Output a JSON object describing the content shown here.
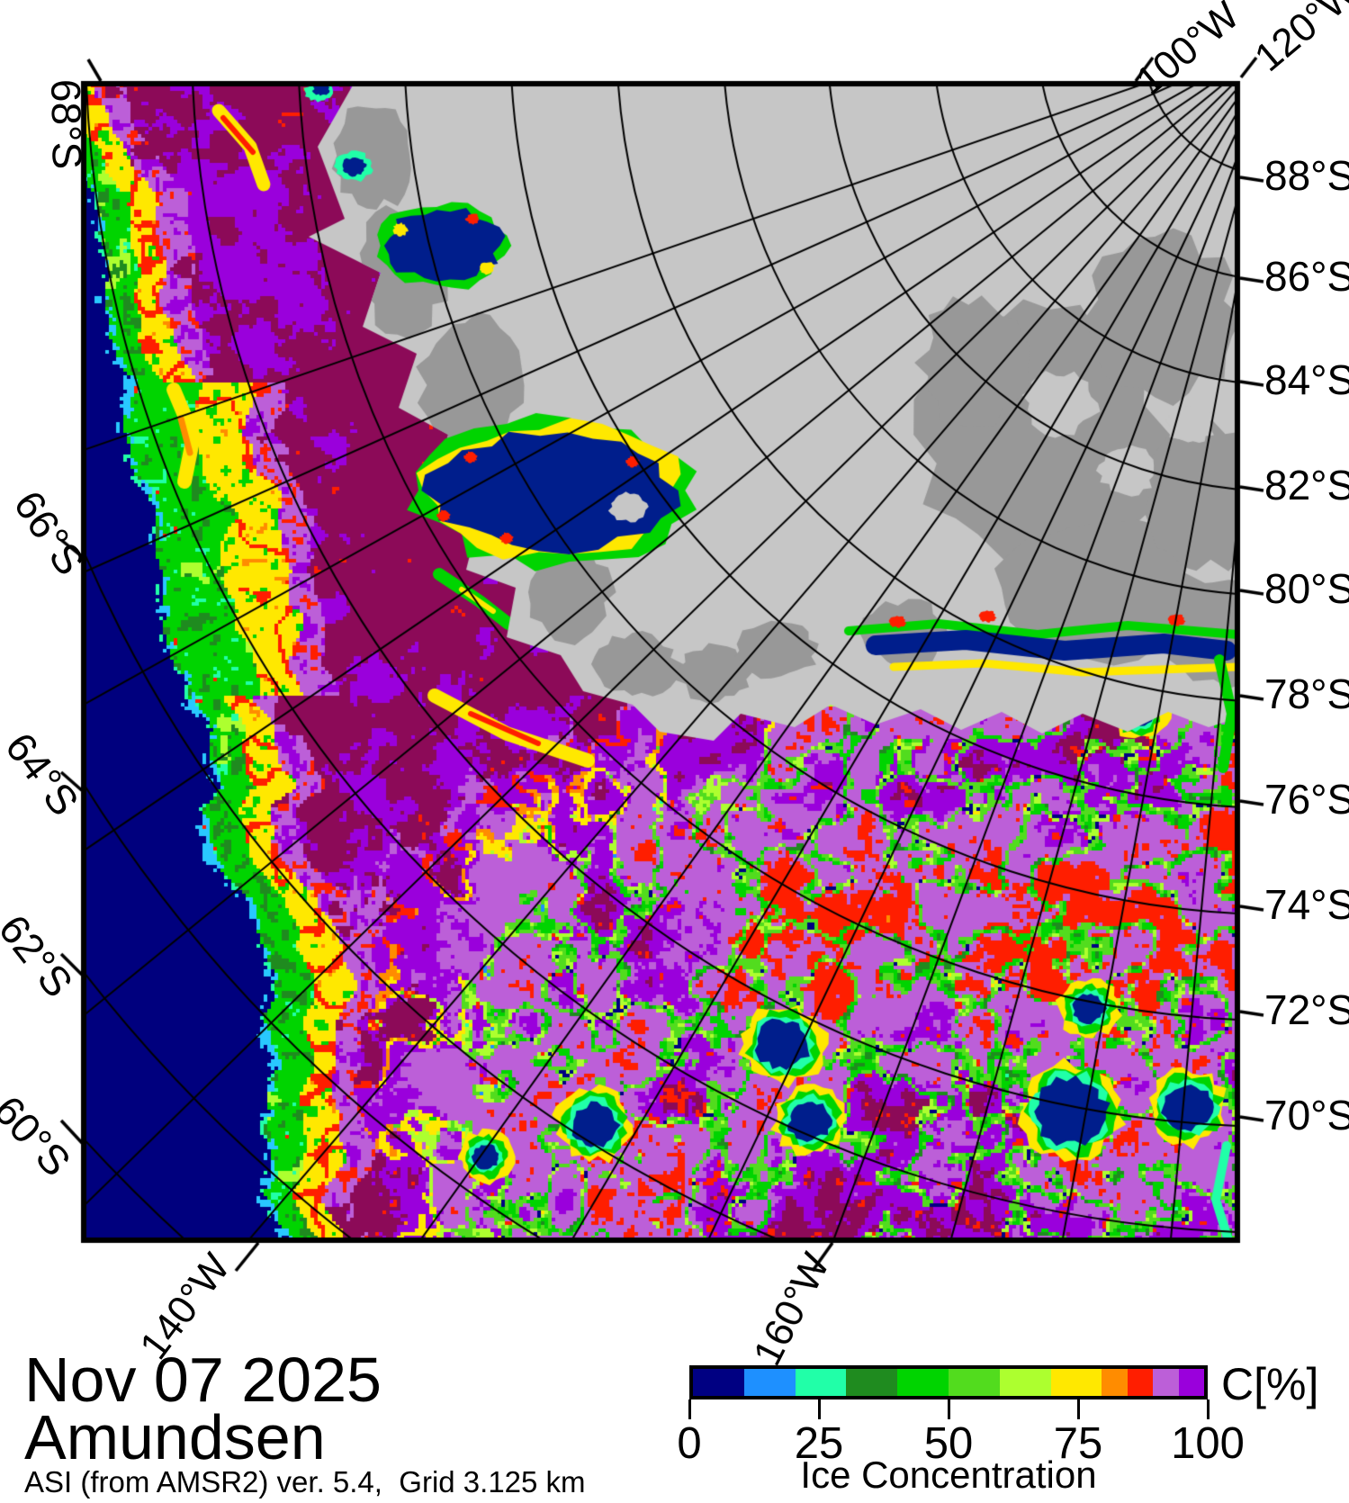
{
  "title": {
    "date": "Nov 07 2025",
    "region": "Amundsen",
    "source": "ASI (from AMSR2) ver. 5.4,  Grid 3.125 km"
  },
  "map": {
    "lat_labels_right": [
      "88°S",
      "86°S",
      "84°S",
      "82°S",
      "80°S",
      "78°S",
      "76°S",
      "74°S",
      "72°S",
      "70°S"
    ],
    "lat_labels_left": [
      "68°S",
      "66°S",
      "64°S",
      "62°S",
      "60°S"
    ],
    "lon_labels": [
      "100°W",
      "120°W",
      "140°W",
      "160°W"
    ],
    "land_color": "#C6C6C6",
    "land_shade_color": "#989898",
    "open_water_color": "#00007E",
    "ice100_color": "#8C0A58",
    "graticule_color": "#000000"
  },
  "colorbar": {
    "label": "C[%]",
    "axis_label": "Ice Concentration",
    "ticks": [
      "0",
      "25",
      "50",
      "75",
      "100"
    ],
    "bounds": [
      0,
      10,
      20,
      30,
      40,
      50,
      60,
      70,
      80,
      85,
      90,
      95,
      100
    ],
    "colors": [
      "#000082",
      "#1E90FF",
      "#21FFA8",
      "#1F8B1F",
      "#00D400",
      "#52DC1E",
      "#ADFF2F",
      "#FFE800",
      "#FF8C00",
      "#FF1E00",
      "#BC5FD8",
      "#9A00DC"
    ]
  }
}
